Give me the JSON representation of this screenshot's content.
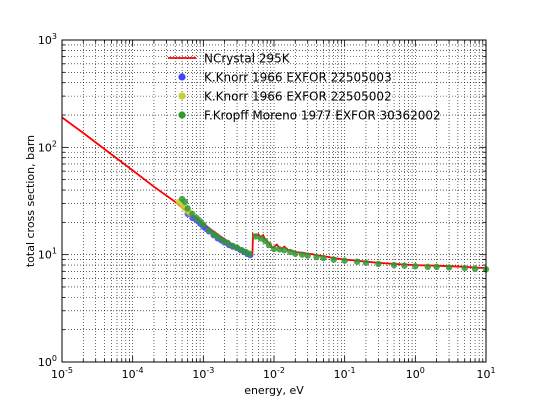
{
  "chart_data": {
    "type": "scatter",
    "title": "",
    "xlabel": "energy, eV",
    "ylabel": "total cross section, barn",
    "x_scale": "log",
    "y_scale": "log",
    "xlim": [
      1e-05,
      10
    ],
    "ylim": [
      1,
      1000
    ],
    "grid": true,
    "legend_position": "top-center",
    "x_ticks": [
      {
        "value": 1e-05,
        "base": "10",
        "exp": "-5"
      },
      {
        "value": 0.0001,
        "base": "10",
        "exp": "-4"
      },
      {
        "value": 0.001,
        "base": "10",
        "exp": "-3"
      },
      {
        "value": 0.01,
        "base": "10",
        "exp": "-2"
      },
      {
        "value": 0.1,
        "base": "10",
        "exp": "-1"
      },
      {
        "value": 1,
        "base": "10",
        "exp": "0"
      },
      {
        "value": 10,
        "base": "10",
        "exp": "1"
      }
    ],
    "y_ticks": [
      {
        "value": 1,
        "base": "10",
        "exp": "0"
      },
      {
        "value": 10,
        "base": "10",
        "exp": "1"
      },
      {
        "value": 100,
        "base": "10",
        "exp": "2"
      },
      {
        "value": 1000,
        "base": "10",
        "exp": "3"
      }
    ],
    "series": [
      {
        "name": "NCrystal 295K",
        "kind": "line",
        "color": "#ff0000",
        "x": [
          1e-05,
          2e-05,
          5e-05,
          0.0001,
          0.0002,
          0.0004,
          0.0006,
          0.0008,
          0.001,
          0.0013,
          0.0016,
          0.002,
          0.0025,
          0.003,
          0.0035,
          0.004,
          0.0045,
          0.0048,
          0.00495,
          0.00505,
          0.0055,
          0.006,
          0.0065,
          0.007,
          0.0075,
          0.008,
          0.0085,
          0.009,
          0.0095,
          0.01,
          0.011,
          0.012,
          0.013,
          0.014,
          0.016,
          0.018,
          0.02,
          0.025,
          0.03,
          0.035,
          0.04,
          0.05,
          0.06,
          0.08,
          0.1,
          0.15,
          0.2,
          0.3,
          0.5,
          0.7,
          1,
          2,
          3,
          5,
          7,
          10
        ],
        "y": [
          190,
          136,
          86,
          61,
          43,
          31,
          25,
          22,
          19.5,
          17,
          15.4,
          13.9,
          12.6,
          11.8,
          11.2,
          10.7,
          10.3,
          10.1,
          10.0,
          15.5,
          15.0,
          15.5,
          14.5,
          15.2,
          13.8,
          13.2,
          12.9,
          12.0,
          11.7,
          11.8,
          12.4,
          11.5,
          11.4,
          11.9,
          11.0,
          10.9,
          10.6,
          10.4,
          10.2,
          10.1,
          9.9,
          9.7,
          9.5,
          9.2,
          9.0,
          8.8,
          8.6,
          8.4,
          8.2,
          8.1,
          8.0,
          7.9,
          7.8,
          7.7,
          7.6,
          7.5
        ]
      },
      {
        "name": "K.Knorr 1966 EXFOR 22505003",
        "kind": "points",
        "color": "#4444ff",
        "x": [
          0.0006,
          0.0007,
          0.0008,
          0.0009,
          0.001,
          0.0011,
          0.0012,
          0.0014,
          0.0016,
          0.0018,
          0.002,
          0.0023,
          0.0026,
          0.003,
          0.0034,
          0.0038,
          0.0042,
          0.0046
        ],
        "y": [
          24,
          22,
          21,
          19.5,
          18.2,
          17.4,
          16.5,
          15.2,
          14.2,
          13.6,
          13.0,
          12.3,
          11.9,
          11.5,
          11.0,
          10.6,
          10.2,
          9.9
        ]
      },
      {
        "name": "K.Knorr 1966 EXFOR 22505002",
        "kind": "points",
        "color": "#cccc33",
        "x": [
          0.00045,
          0.0005,
          0.00055,
          0.0006,
          0.00065
        ],
        "y": [
          31,
          29,
          27,
          25.5,
          24.5
        ]
      },
      {
        "name": "F.Kropff Moreno 1977 EXFOR 30362002",
        "kind": "points",
        "color": "#339933",
        "x": [
          0.0005,
          0.00055,
          0.0006,
          0.0007,
          0.0008,
          0.0009,
          0.001,
          0.0012,
          0.0014,
          0.0016,
          0.0019,
          0.0022,
          0.0026,
          0.003,
          0.0035,
          0.004,
          0.0045,
          0.0055,
          0.0065,
          0.0075,
          0.0085,
          0.01,
          0.012,
          0.014,
          0.017,
          0.02,
          0.025,
          0.03,
          0.04,
          0.05,
          0.07,
          0.1,
          0.15,
          0.2,
          0.3,
          0.5,
          0.7,
          1,
          1.5,
          2,
          3,
          5,
          7,
          10
        ],
        "y": [
          33,
          31,
          27,
          24,
          22,
          20.5,
          19,
          16.8,
          15.6,
          14.6,
          13.6,
          12.9,
          12.1,
          11.6,
          11.0,
          10.6,
          10.2,
          14.8,
          14.2,
          13.4,
          12.3,
          11.3,
          11.2,
          11.0,
          10.6,
          10.2,
          10.0,
          9.8,
          9.5,
          9.3,
          9.0,
          8.8,
          8.6,
          8.4,
          8.2,
          8.0,
          7.9,
          7.8,
          7.7,
          7.7,
          7.6,
          7.5,
          7.4,
          7.3
        ]
      }
    ]
  }
}
